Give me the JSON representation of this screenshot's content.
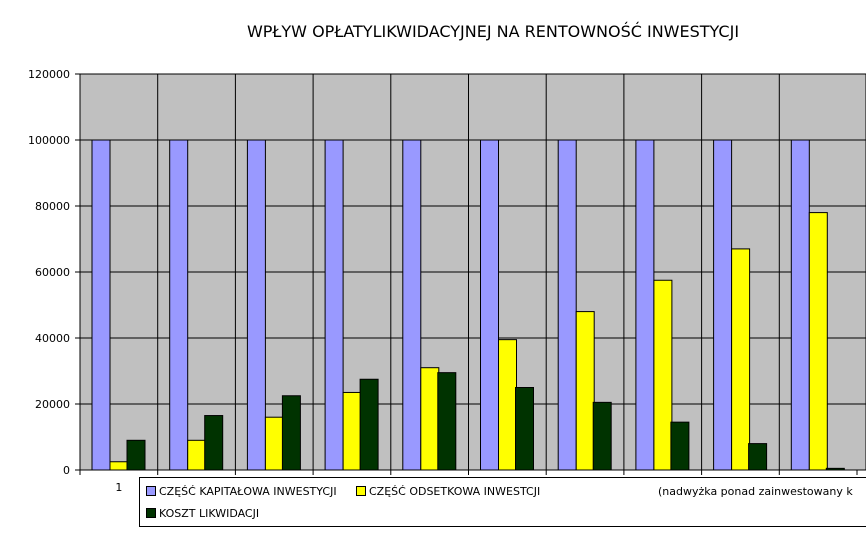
{
  "chart_data": {
    "type": "bar",
    "title": "WPŁYW OPŁATYLIKWIDACYJNEJ NA RENTOWNOŚĆ INWESTYCJI",
    "categories": [
      "1",
      "",
      "",
      "",
      "",
      "",
      "",
      "",
      "",
      ""
    ],
    "ylim": [
      0,
      120000
    ],
    "yticks": [
      "0",
      "20000",
      "40000",
      "60000",
      "80000",
      "100000",
      "120000"
    ],
    "grid": true,
    "plot_background": "#c0c0c0",
    "legend_position": "bottom",
    "legend_note": "(nadwyżka ponad zainwestowany k",
    "series": [
      {
        "name": "CZĘŚĆ KAPITAŁOWA INWESTYCJI",
        "color": "#9999ff",
        "values": [
          100000,
          100000,
          100000,
          100000,
          100000,
          100000,
          100000,
          100000,
          100000,
          100000
        ]
      },
      {
        "name": "CZĘŚĆ ODSETKOWA INWESTCJI",
        "color": "#ffff00",
        "values": [
          2500,
          9000,
          16000,
          23500,
          31000,
          39500,
          48000,
          57500,
          67000,
          78000
        ]
      },
      {
        "name": "KOSZT LIKWIDACJI",
        "color": "#003300",
        "values": [
          9000,
          16500,
          22500,
          27500,
          29500,
          25000,
          20500,
          14500,
          8000,
          500
        ]
      }
    ]
  }
}
